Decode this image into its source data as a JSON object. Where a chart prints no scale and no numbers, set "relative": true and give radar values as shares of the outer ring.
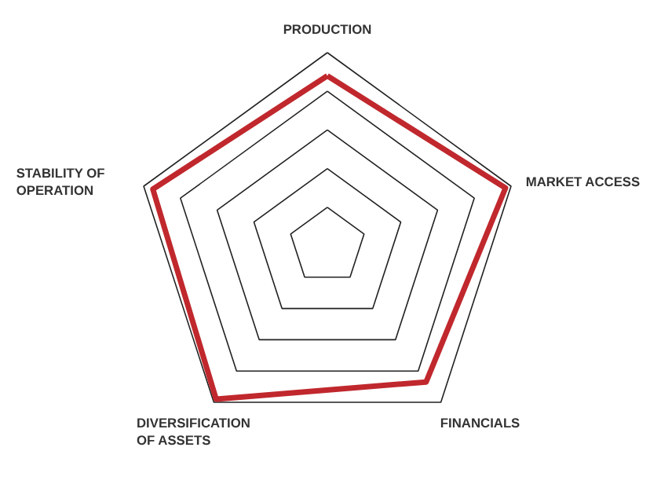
{
  "chart_data": {
    "type": "radar",
    "relative": true,
    "grid": true,
    "categories": [
      "PRODUCTION",
      "MARKET ACCESS",
      "FINANCIALS",
      "DIVERSIFICATION\nOF ASSETS",
      "STABILITY OF\nOPERATION"
    ],
    "series": [
      {
        "color": "#c0282d",
        "values": [
          0.88,
          0.97,
          0.87,
          0.98,
          0.95
        ]
      }
    ]
  }
}
